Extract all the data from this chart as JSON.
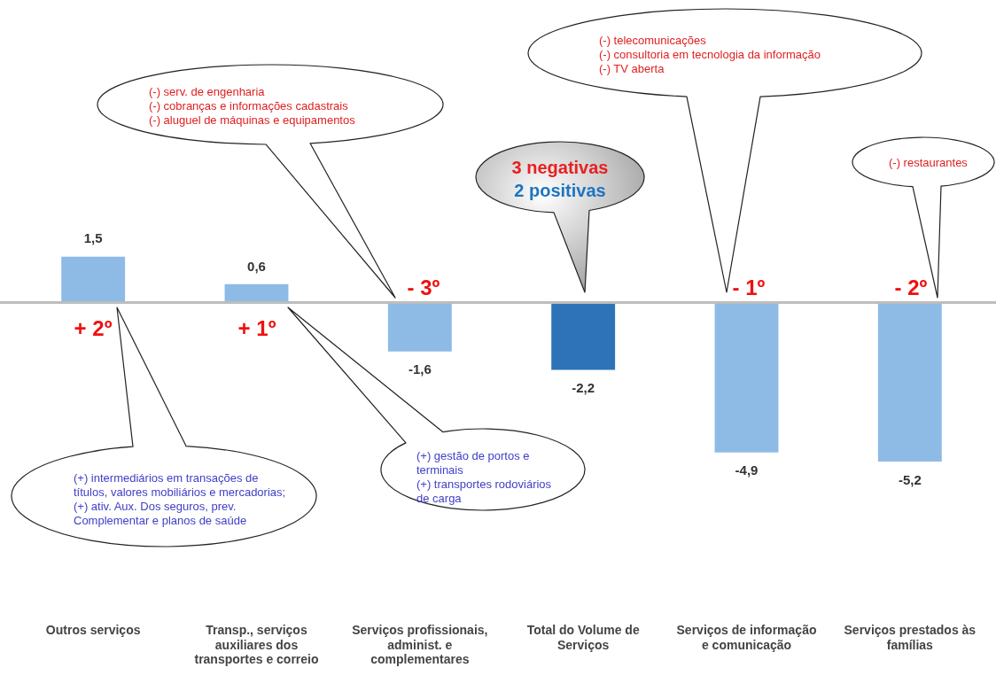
{
  "chart_data": {
    "type": "bar",
    "categories": [
      "Outros serviços",
      "Transp., serviços auxiliares dos transportes e correio",
      "Serviços profissionais, administ. e complementares",
      "Total do Volume de Serviços",
      "Serviços de informação e comunicação",
      "Serviços prestados às famílias"
    ],
    "values": [
      1.5,
      0.6,
      -1.6,
      -2.2,
      -4.9,
      -5.2
    ],
    "colors": [
      "#8dbbe6",
      "#8dbbe6",
      "#8dbbe6",
      "#2e73b8",
      "#8dbbe6",
      "#8dbbe6"
    ],
    "value_labels": [
      "1,5",
      "0,6",
      "-1,6",
      "-2,2",
      "-4,9",
      "-5,2"
    ],
    "annotations": [
      "+ 2º",
      "+ 1º",
      "- 3º",
      "- 1º",
      "- 2º",
      "(+) intermediários em transações de títulos, valores mobiliários e mercadorias;\n(+) ativ. Aux. Dos seguros, prev. Complementar e planos de saúde",
      "(+) gestão de portos e terminais\n(+) transportes rodoviários de carga",
      "(-) serv. de engenharia\n(-) cobranças e informações cadastrais\n(-) aluguel de máquinas e equipamentos",
      "3 negativas",
      "2 positivas",
      "(-) telecomunicações\n(-) consultoria em tecnologia da informação\n(-) TV aberta",
      "(-) restaurantes"
    ],
    "grid": false,
    "legend": false
  }
}
